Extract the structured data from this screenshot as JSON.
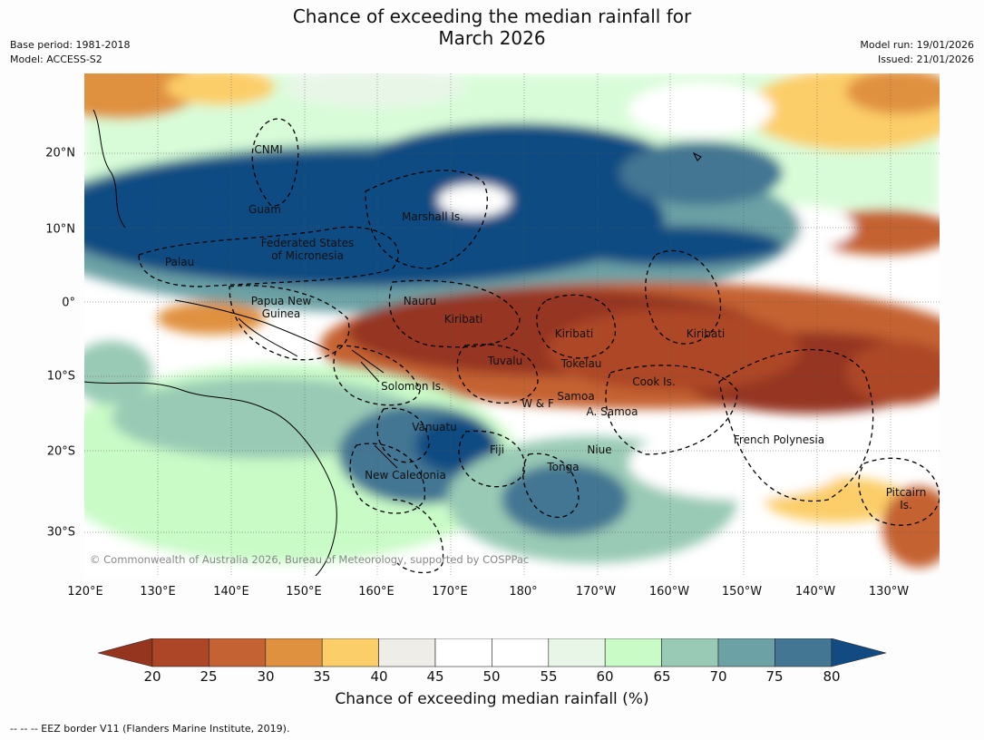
{
  "title": {
    "line1": "Chance of exceeding the median rainfall for",
    "line2": "March 2026"
  },
  "meta": {
    "base_period": "Base period: 1981-2018",
    "model": "Model: ACCESS-S2",
    "model_run": "Model run: 19/01/2026",
    "issued": "Issued: 21/01/2026"
  },
  "map": {
    "copyright": "© Commonwealth of Australia 2026, Bureau of Meteorology, supported by COSPPac",
    "lat_ticks": [
      "20°N",
      "10°N",
      "0°",
      "10°S",
      "20°S",
      "30°S"
    ],
    "lon_ticks": [
      "120°E",
      "130°E",
      "140°E",
      "150°E",
      "160°E",
      "170°E",
      "180°",
      "170°W",
      "160°W",
      "150°W",
      "140°W",
      "130°W"
    ],
    "places": {
      "cnmi": "CNMI",
      "guam": "Guam",
      "marshall": "Marshall Is.",
      "fsm1": "Federated States",
      "fsm2": "of Micronesia",
      "palau": "Palau",
      "png1": "Papua New",
      "png2": "Guinea",
      "nauru": "Nauru",
      "kiribati_w": "Kiribati",
      "kiribati_c": "Kiribati",
      "kiribati_e": "Kiribati",
      "tuvalu": "Tuvalu",
      "tokelau": "Tokelau",
      "solomon": "Solomon Is.",
      "cook": "Cook Is.",
      "wf": "W & F",
      "samoa": "Samoa",
      "asamoa": "A. Samoa",
      "vanuatu": "Vanuatu",
      "fiji": "Fiji",
      "niue": "Niue",
      "tonga": "Tonga",
      "fpoly": "French Polynesia",
      "newcal": "New Caledonia",
      "pitcairn1": "Pitcairn",
      "pitcairn2": "Is."
    }
  },
  "colorbar": {
    "label": "Chance of exceeding median rainfall (%)",
    "ticks": [
      "20",
      "25",
      "30",
      "35",
      "40",
      "45",
      "50",
      "55",
      "60",
      "65",
      "70",
      "75",
      "80"
    ],
    "colors": {
      "lt20": "#953520",
      "c20": "#ad4626",
      "c25": "#c56233",
      "c30": "#e0913f",
      "c35": "#fcce69",
      "c40": "#efede8",
      "c45": "#ffffff",
      "c50": "#ffffff",
      "c55": "#e8f6e8",
      "c60": "#c9fbc7",
      "c65": "#99cab5",
      "c70": "#6ca1a5",
      "c75": "#437693",
      "gt80": "#114b82"
    }
  },
  "footnote": "--  --  -- EEZ border V11 (Flanders Marine Institute, 2019)."
}
